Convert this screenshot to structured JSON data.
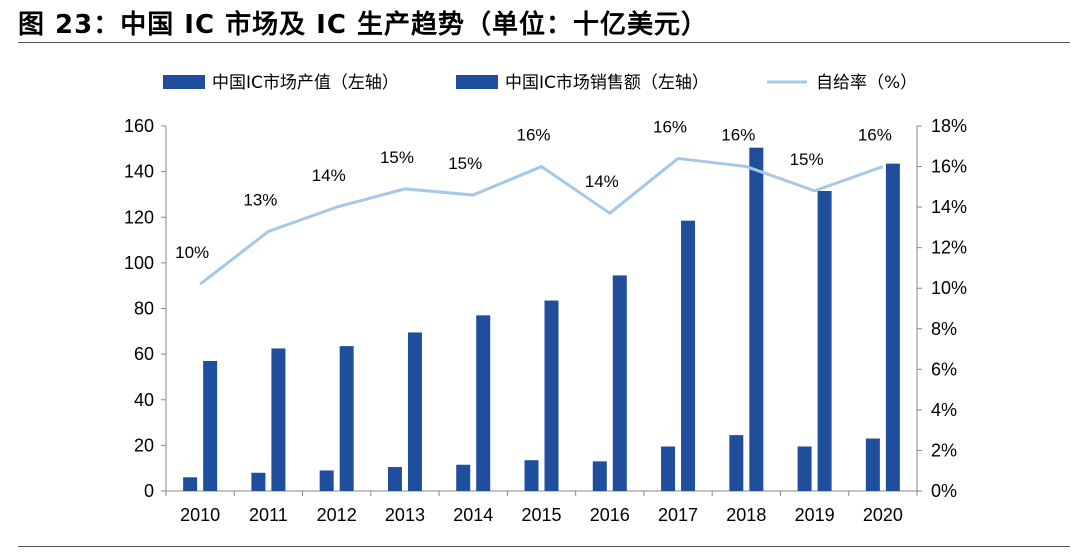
{
  "header": {
    "title": "图 23：中国 IC 市场及 IC 生产趋势（单位：十亿美元）"
  },
  "chart_data": {
    "type": "bar",
    "categories": [
      "2010",
      "2011",
      "2012",
      "2013",
      "2014",
      "2015",
      "2016",
      "2017",
      "2018",
      "2019",
      "2020"
    ],
    "series": [
      {
        "name": "中国IC市场产值（左轴）",
        "type": "bar",
        "axis": "left",
        "color": "#1f4e9c",
        "values": [
          6,
          8,
          9,
          10.5,
          11.5,
          13.5,
          13,
          19.5,
          24.5,
          19.5,
          23
        ]
      },
      {
        "name": "中国IC市场销售额（左轴）",
        "type": "bar",
        "axis": "left",
        "color": "#1f4e9c",
        "values": [
          57,
          62.5,
          63.5,
          69.5,
          77,
          83.5,
          94.5,
          118.5,
          150.5,
          131.5,
          143.5
        ]
      },
      {
        "name": "自给率（%）",
        "type": "line",
        "axis": "right",
        "color": "#a6c8e8",
        "values": [
          10.2,
          12.8,
          14.0,
          14.9,
          14.6,
          16.0,
          13.7,
          16.4,
          16.0,
          14.8,
          16.0
        ],
        "data_labels": [
          "10%",
          "13%",
          "14%",
          "15%",
          "15%",
          "16%",
          "14%",
          "16%",
          "16%",
          "15%",
          "16%"
        ]
      }
    ],
    "left_axis": {
      "ylim": [
        0,
        160
      ],
      "ticks": [
        "0",
        "20",
        "40",
        "60",
        "80",
        "100",
        "120",
        "140",
        "160"
      ]
    },
    "right_axis": {
      "ylim": [
        0,
        18
      ],
      "ticks": [
        "0%",
        "2%",
        "4%",
        "6%",
        "8%",
        "10%",
        "12%",
        "14%",
        "16%",
        "18%"
      ]
    },
    "legend_position": "top",
    "grid": false
  }
}
